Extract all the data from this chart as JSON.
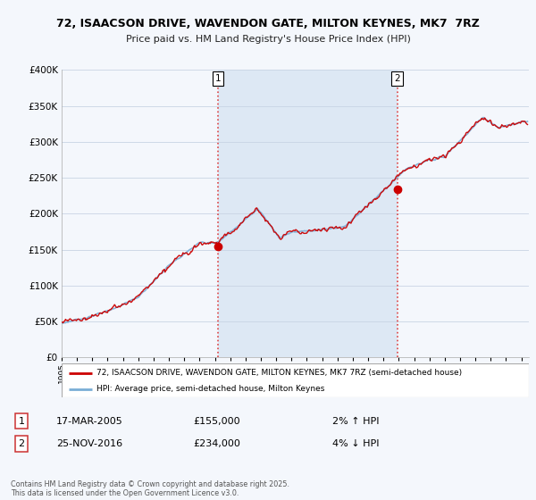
{
  "title": "72, ISAACSON DRIVE, WAVENDON GATE, MILTON KEYNES, MK7  7RZ",
  "subtitle": "Price paid vs. HM Land Registry's House Price Index (HPI)",
  "legend_line1": "72, ISAACSON DRIVE, WAVENDON GATE, MILTON KEYNES, MK7 7RZ (semi-detached house)",
  "legend_line2": "HPI: Average price, semi-detached house, Milton Keynes",
  "annotation1_label": "1",
  "annotation1_date": "17-MAR-2005",
  "annotation1_price": "£155,000",
  "annotation1_hpi": "2% ↑ HPI",
  "annotation2_label": "2",
  "annotation2_date": "25-NOV-2016",
  "annotation2_price": "£234,000",
  "annotation2_hpi": "4% ↓ HPI",
  "footer": "Contains HM Land Registry data © Crown copyright and database right 2025.\nThis data is licensed under the Open Government Licence v3.0.",
  "red_color": "#cc0000",
  "blue_color": "#7aaed6",
  "vline_color": "#dd4444",
  "background_color": "#f4f7fc",
  "plot_bg_color": "#f4f7fc",
  "shaded_color": "#dde8f4",
  "ylim": [
    0,
    400000
  ],
  "yticks": [
    0,
    50000,
    100000,
    150000,
    200000,
    250000,
    300000,
    350000,
    400000
  ],
  "purchase1_x": 2005.2,
  "purchase1_y": 155000,
  "purchase2_x": 2016.9,
  "purchase2_y": 234000,
  "xmin": 1995,
  "xmax": 2025.5
}
